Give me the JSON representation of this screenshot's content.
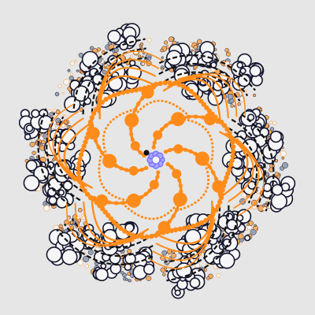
{
  "image": {
    "subject": "fractal-rosette",
    "symmetry": 6,
    "colors": {
      "background": "#e6e6e6",
      "orange": "#ff8c1a",
      "orange_light": "#ffab5c",
      "ring_white": "#f6f6f8",
      "ink": "#15172e",
      "blue_fill": "#a9a6ff",
      "blue_edge": "#6f6aff",
      "black": "#111111",
      "grey": "#9aa2b4"
    }
  }
}
